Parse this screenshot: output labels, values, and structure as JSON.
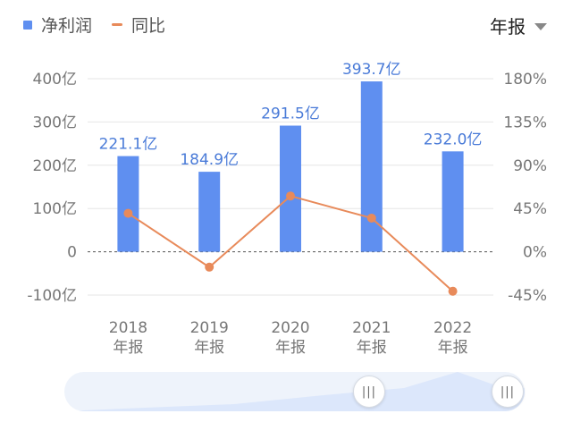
{
  "legend": {
    "bar_label": "净利润",
    "line_label": "同比"
  },
  "period_selector": {
    "label": "年报"
  },
  "scroller": {
    "left_handle": "|||",
    "right_handle": "|||"
  },
  "colors": {
    "bar": "#5f8ff0",
    "line": "#e88a5a",
    "axis_text": "#777777",
    "grid": "#e6e6e6"
  },
  "chart_data": {
    "type": "bar+line",
    "categories": [
      [
        "2018",
        "年报"
      ],
      [
        "2019",
        "年报"
      ],
      [
        "2020",
        "年报"
      ],
      [
        "2021",
        "年报"
      ],
      [
        "2022",
        "年报"
      ]
    ],
    "series": [
      {
        "name": "净利润",
        "type": "bar",
        "axis": "left",
        "values": [
          221.1,
          184.9,
          291.5,
          393.7,
          232.0
        ],
        "labels": [
          "221.1亿",
          "184.9亿",
          "291.5亿",
          "393.7亿",
          "232.0亿"
        ]
      },
      {
        "name": "同比",
        "type": "line",
        "axis": "right",
        "values": [
          40,
          -16,
          58,
          35,
          -41
        ]
      }
    ],
    "y_left": {
      "ticks": [
        400,
        300,
        200,
        100,
        0,
        -100
      ],
      "tick_labels": [
        "400亿",
        "300亿",
        "200亿",
        "100亿",
        "0",
        "-100亿"
      ],
      "range": [
        -100,
        400
      ]
    },
    "y_right": {
      "ticks": [
        180,
        135,
        90,
        45,
        0,
        -45
      ],
      "tick_labels": [
        "180%",
        "135%",
        "90%",
        "45%",
        "0%",
        "-45%"
      ],
      "range": [
        -45,
        180
      ]
    },
    "grid": true,
    "zero_line": "dashed"
  }
}
